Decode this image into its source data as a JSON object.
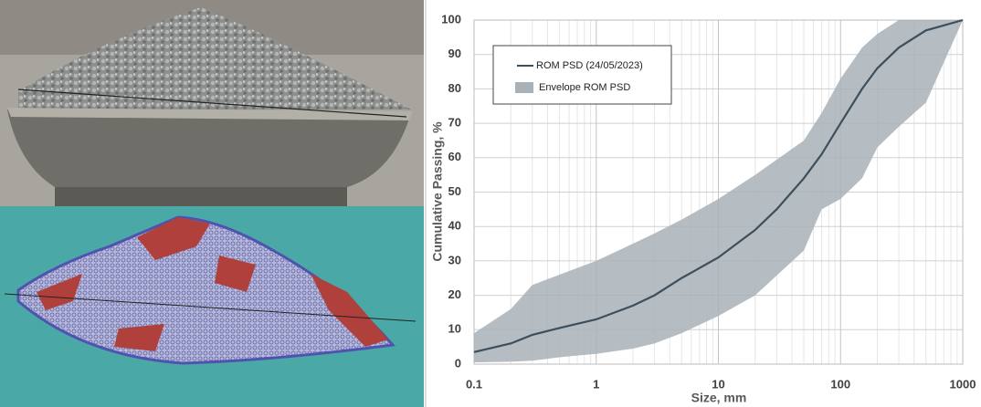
{
  "chart_data": {
    "type": "line",
    "xlabel": "Size, mm",
    "ylabel": "Cumulative Passing, %",
    "log_x": true,
    "grid": true,
    "minor_grid": true,
    "legend": "upper left",
    "xlim": [
      0.1,
      1000
    ],
    "xticks": [
      0.1,
      1,
      10,
      100,
      1000
    ],
    "ylim": [
      0,
      100
    ],
    "yticks": [
      0,
      10,
      20,
      30,
      40,
      50,
      60,
      70,
      80,
      90,
      100
    ],
    "series": [
      {
        "name": "ROM PSD (24/05/2023)",
        "color": "#3d4f5c",
        "x": [
          0.1,
          0.2,
          0.3,
          0.5,
          1,
          2,
          3,
          5,
          10,
          20,
          30,
          50,
          70,
          100,
          150,
          200,
          300,
          500,
          1000
        ],
        "values": [
          3.5,
          6,
          8.5,
          10.5,
          13,
          17,
          20,
          25,
          31,
          39,
          45,
          54,
          61,
          70,
          80,
          86,
          92,
          97,
          100
        ]
      }
    ],
    "envelope": {
      "name": "Envelope ROM PSD",
      "color": "#a9b1b7",
      "x": [
        0.1,
        0.2,
        0.3,
        0.5,
        1,
        2,
        3,
        5,
        10,
        20,
        50,
        70,
        100,
        150,
        200,
        300,
        500,
        1000
      ],
      "upper": [
        9,
        16,
        23,
        26,
        30,
        35,
        38,
        42,
        48,
        55,
        65,
        73,
        83,
        92,
        96,
        100,
        100,
        100
      ],
      "lower": [
        0.5,
        0.7,
        1,
        2,
        3,
        4.5,
        6,
        9,
        14,
        20,
        33,
        45,
        48,
        54,
        63,
        69,
        76,
        100
      ]
    }
  }
}
